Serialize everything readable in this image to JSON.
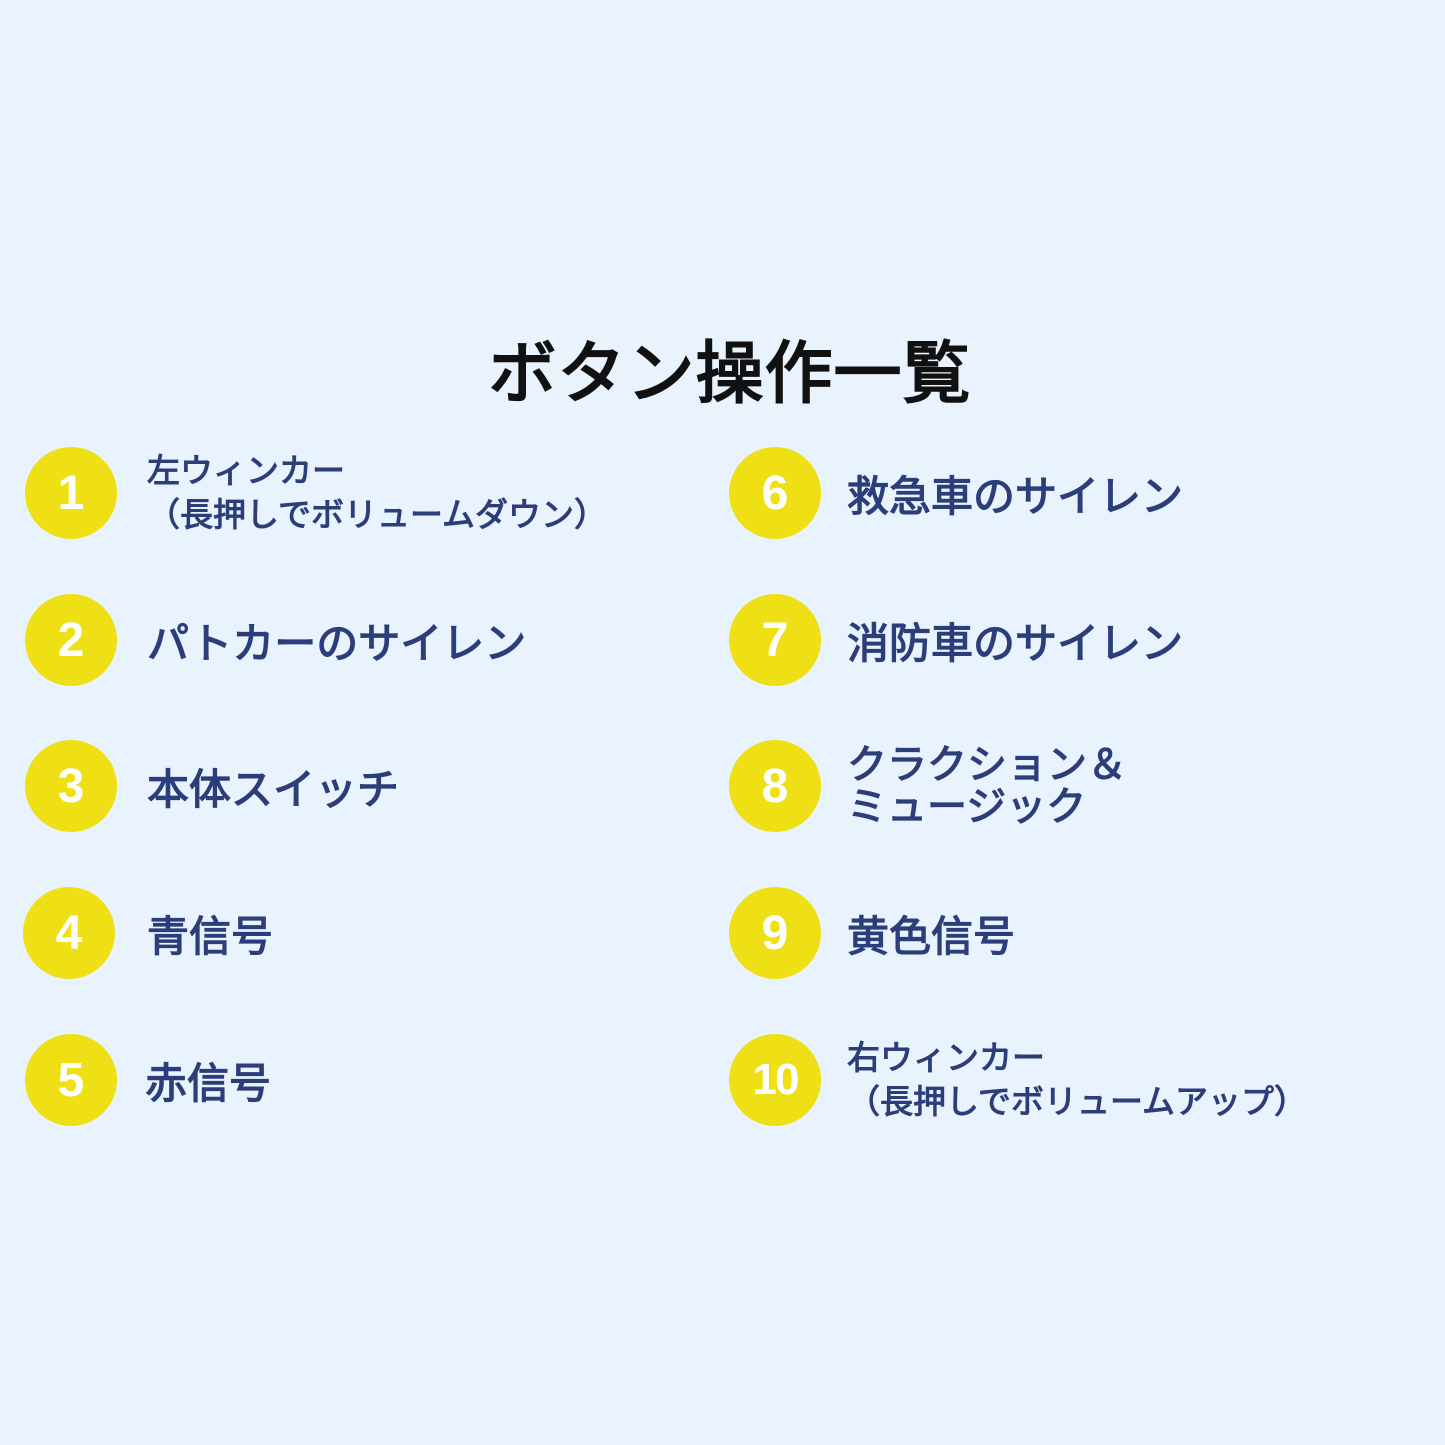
{
  "title": "ボタン操作一覧",
  "colors": {
    "background": "#E8F3FD",
    "badge": "#EFE016",
    "text": "#2C3E7A"
  },
  "items": [
    {
      "number": "1",
      "lines": [
        "左ウィンカー",
        "（長押しでボリュームダウン）"
      ]
    },
    {
      "number": "2",
      "lines": [
        "パトカーのサイレン"
      ]
    },
    {
      "number": "3",
      "lines": [
        "本体スイッチ"
      ]
    },
    {
      "number": "4",
      "lines": [
        "青信号"
      ]
    },
    {
      "number": "5",
      "lines": [
        "赤信号"
      ]
    },
    {
      "number": "6",
      "lines": [
        "救急車のサイレン"
      ]
    },
    {
      "number": "7",
      "lines": [
        "消防車のサイレン"
      ]
    },
    {
      "number": "8",
      "lines": [
        "クラクション＆",
        "ミュージック"
      ]
    },
    {
      "number": "9",
      "lines": [
        "黄色信号"
      ]
    },
    {
      "number": "10",
      "lines": [
        "右ウィンカー",
        "（長押しでボリュームアップ）"
      ]
    }
  ]
}
